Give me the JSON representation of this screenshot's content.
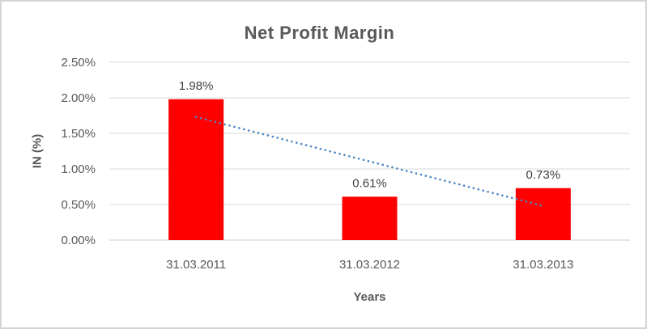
{
  "chart_data": {
    "type": "bar",
    "title": "Net Profit Margin",
    "xlabel": "Years",
    "ylabel": "IN (%)",
    "categories": [
      "31.03.2011",
      "31.03.2012",
      "31.03.2013"
    ],
    "values": [
      1.98,
      0.61,
      0.73
    ],
    "data_labels": [
      "1.98%",
      "0.61%",
      "0.73%"
    ],
    "y_ticks": [
      "0.00%",
      "0.50%",
      "1.00%",
      "1.50%",
      "2.00%",
      "2.50%"
    ],
    "ylim": [
      0,
      2.5
    ],
    "grid": true,
    "legend": false,
    "bar_color": "#ff0000",
    "label_color": "#404040",
    "axis_text_color": "#595959",
    "gridline_color": "#d9d9d9",
    "axis_line_color": "#cccccc",
    "trendline": {
      "type": "linear",
      "style": "dotted",
      "color": "#4a86c5",
      "start_value": 1.73,
      "end_value": 0.48
    }
  }
}
